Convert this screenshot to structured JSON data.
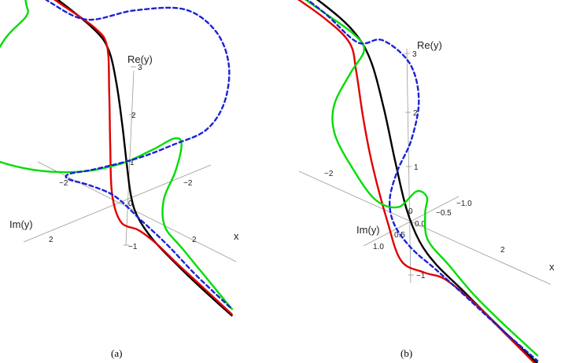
{
  "figure": {
    "panels": [
      {
        "caption": "(a)",
        "axis_labels": {
          "re": "Re(y)",
          "im": "Im(y)",
          "x": "x"
        },
        "ticks": {
          "re": [
            "3",
            "2",
            "1",
            "0",
            "−1"
          ],
          "im": [
            "2",
            "−2"
          ],
          "x": [
            "−2",
            "2"
          ]
        }
      },
      {
        "caption": "(b)",
        "axis_labels": {
          "re": "Re(y)",
          "im": "Im(y)",
          "x": "x"
        },
        "ticks": {
          "re": [
            "3",
            "2",
            "1",
            "0",
            "−1"
          ],
          "im": [
            "1.0",
            "0.5",
            "0.0",
            "−0.5",
            "−1.0"
          ],
          "x": [
            "−2",
            "2"
          ]
        }
      }
    ]
  },
  "chart_data": [
    {
      "type": "line",
      "projection": "3d",
      "caption": "(a)",
      "axes": {
        "x": "x",
        "y": "Im(y)",
        "z": "Re(y)"
      },
      "ranges": {
        "x": [
          -3,
          3
        ],
        "im": [
          -2.5,
          2.5
        ],
        "re": [
          -1,
          3
        ]
      },
      "series": [
        {
          "color": "#000000",
          "style": "solid",
          "points": [
            [
              -3,
              0,
              3.6
            ],
            [
              -2,
              0,
              3.45
            ],
            [
              -1,
              0,
              3.2
            ],
            [
              -0.6,
              0,
              2.9
            ],
            [
              -0.35,
              0,
              2.2
            ],
            [
              -0.15,
              0,
              1.3
            ],
            [
              0,
              0,
              0.5
            ],
            [
              0.15,
              0,
              -0.2
            ],
            [
              0.35,
              0,
              -0.6
            ],
            [
              0.8,
              0,
              -0.95
            ],
            [
              1.5,
              0,
              -1.25
            ],
            [
              2.2,
              0,
              -1.5
            ],
            [
              3,
              0,
              -1.75
            ]
          ]
        },
        {
          "color": "#e00000",
          "style": "solid",
          "points": [
            [
              -3,
              0,
              3.55
            ],
            [
              -2,
              0,
              3.4
            ],
            [
              -1,
              0,
              3.25
            ],
            [
              -0.6,
              0.05,
              3.0
            ],
            [
              -0.45,
              0.1,
              2.0
            ],
            [
              -0.35,
              0.12,
              0.8
            ],
            [
              -0.25,
              0.12,
              -0.3
            ],
            [
              0,
              0.1,
              -0.85
            ],
            [
              0.4,
              0,
              -0.9
            ],
            [
              0.9,
              0,
              -1.0
            ],
            [
              1.5,
              0,
              -1.22
            ],
            [
              2.2,
              0,
              -1.45
            ],
            [
              3,
              0,
              -1.72
            ]
          ]
        },
        {
          "color": "#00dd00",
          "style": "solid",
          "points": [
            [
              -3,
              0,
              3.35
            ],
            [
              -2.6,
              0.3,
              3.2
            ],
            [
              -2.3,
              0.6,
              3.15
            ],
            [
              -2.3,
              1.2,
              2.8
            ],
            [
              -2.25,
              1.8,
              2.1
            ],
            [
              -2.2,
              2.2,
              1.3
            ],
            [
              -1.9,
              2.1,
              0.6
            ],
            [
              -1.3,
              1.5,
              0.3
            ],
            [
              -0.6,
              0.8,
              0.3
            ],
            [
              0,
              0.2,
              0.55
            ],
            [
              0.4,
              -0.3,
              0.9
            ],
            [
              0.7,
              -0.6,
              1.2
            ],
            [
              0.9,
              -0.6,
              1.15
            ],
            [
              0.95,
              -0.4,
              0.6
            ],
            [
              0.9,
              -0.15,
              0
            ],
            [
              1.1,
              0,
              -0.5
            ],
            [
              1.6,
              0,
              -0.8
            ],
            [
              2.3,
              0,
              -1.2
            ],
            [
              3,
              0,
              -1.6
            ]
          ]
        },
        {
          "color": "#1a22d6",
          "style": "dashed",
          "points": [
            [
              -3,
              0,
              3.45
            ],
            [
              -2.2,
              0,
              3.3
            ],
            [
              -1.4,
              -0.2,
              3.2
            ],
            [
              -0.8,
              -0.9,
              3.45
            ],
            [
              -0.3,
              -1.8,
              3.4
            ],
            [
              0.1,
              -2.3,
              2.9
            ],
            [
              0.4,
              -2.4,
              2.2
            ],
            [
              0.6,
              -2.1,
              1.5
            ],
            [
              0.7,
              -1.5,
              1.1
            ],
            [
              0.5,
              -0.8,
              0.9
            ],
            [
              0.1,
              -0.2,
              0.6
            ],
            [
              -0.4,
              0.5,
              0.35
            ],
            [
              -0.75,
              0.85,
              0.2
            ],
            [
              -0.85,
              0.75,
              0
            ],
            [
              -0.6,
              0.4,
              -0.15
            ],
            [
              -0.1,
              0.2,
              -0.25
            ],
            [
              0.5,
              0.1,
              -0.55
            ],
            [
              1.2,
              0,
              -0.9
            ],
            [
              2,
              0,
              -1.25
            ],
            [
              3,
              0,
              -1.6
            ]
          ]
        }
      ]
    },
    {
      "type": "line",
      "projection": "3d",
      "caption": "(b)",
      "axes": {
        "x": "x",
        "y": "Im(y)",
        "z": "Re(y)"
      },
      "ranges": {
        "x": [
          -3,
          3
        ],
        "im": [
          -1.2,
          1.2
        ],
        "re": [
          -1,
          3
        ]
      },
      "series": [
        {
          "color": "#000000",
          "style": "solid",
          "points": [
            [
              -3,
              0,
              3.45
            ],
            [
              -2,
              0,
              3.25
            ],
            [
              -1.3,
              0,
              3.0
            ],
            [
              -0.9,
              0,
              2.6
            ],
            [
              -0.6,
              0,
              1.8
            ],
            [
              -0.35,
              0,
              0.9
            ],
            [
              -0.1,
              0,
              0.1
            ],
            [
              0.2,
              0,
              -0.4
            ],
            [
              0.6,
              0,
              -0.7
            ],
            [
              1.2,
              0,
              -0.95
            ],
            [
              2,
              0,
              -1.3
            ],
            [
              3,
              0,
              -1.7
            ]
          ]
        },
        {
          "color": "#e00000",
          "style": "solid",
          "points": [
            [
              -3,
              0,
              3.2
            ],
            [
              -2,
              0,
              3.0
            ],
            [
              -1.4,
              0,
              2.75
            ],
            [
              -1.2,
              0.05,
              2.3
            ],
            [
              -1.0,
              0.1,
              1.5
            ],
            [
              -0.8,
              0.1,
              0.7
            ],
            [
              -0.45,
              0.12,
              -0.2
            ],
            [
              -0.15,
              0.1,
              -0.85
            ],
            [
              0.3,
              0,
              -0.95
            ],
            [
              0.8,
              0,
              -0.9
            ],
            [
              1.5,
              0,
              -1.1
            ],
            [
              2.2,
              0,
              -1.4
            ],
            [
              3,
              0,
              -1.75
            ]
          ]
        },
        {
          "color": "#00dd00",
          "style": "solid",
          "points": [
            [
              -3,
              0,
              3.3
            ],
            [
              -2,
              0,
              3.1
            ],
            [
              -1.3,
              0,
              2.95
            ],
            [
              -1.1,
              -0.05,
              2.7
            ],
            [
              -1.1,
              0.3,
              2.4
            ],
            [
              -1.2,
              0.6,
              1.9
            ],
            [
              -1.15,
              0.65,
              1.4
            ],
            [
              -0.9,
              0.5,
              0.8
            ],
            [
              -0.6,
              0.25,
              0.2
            ],
            [
              -0.25,
              0.05,
              0.1
            ],
            [
              0,
              -0.15,
              0.4
            ],
            [
              0.15,
              -0.25,
              0.3
            ],
            [
              0.2,
              -0.15,
              0.05
            ],
            [
              0.4,
              0,
              -0.3
            ],
            [
              0.9,
              0,
              -0.6
            ],
            [
              1.5,
              0,
              -0.95
            ],
            [
              2.2,
              0,
              -1.25
            ],
            [
              3,
              0,
              -1.55
            ]
          ]
        },
        {
          "color": "#1a22d6",
          "style": "dashed",
          "points": [
            [
              -3,
              0,
              3.35
            ],
            [
              -2,
              0,
              3.1
            ],
            [
              -1.3,
              -0.1,
              2.75
            ],
            [
              -0.9,
              -0.3,
              2.85
            ],
            [
              -0.5,
              -0.55,
              2.45
            ],
            [
              -0.35,
              -0.6,
              1.8
            ],
            [
              -0.4,
              -0.45,
              1.1
            ],
            [
              -0.55,
              -0.25,
              0.55
            ],
            [
              -0.6,
              -0.1,
              0.05
            ],
            [
              -0.4,
              0,
              -0.3
            ],
            [
              0,
              0,
              -0.6
            ],
            [
              0.6,
              0,
              -0.8
            ],
            [
              1.3,
              0,
              -1.05
            ],
            [
              2.1,
              0,
              -1.35
            ],
            [
              3,
              0,
              -1.65
            ]
          ]
        }
      ]
    }
  ]
}
